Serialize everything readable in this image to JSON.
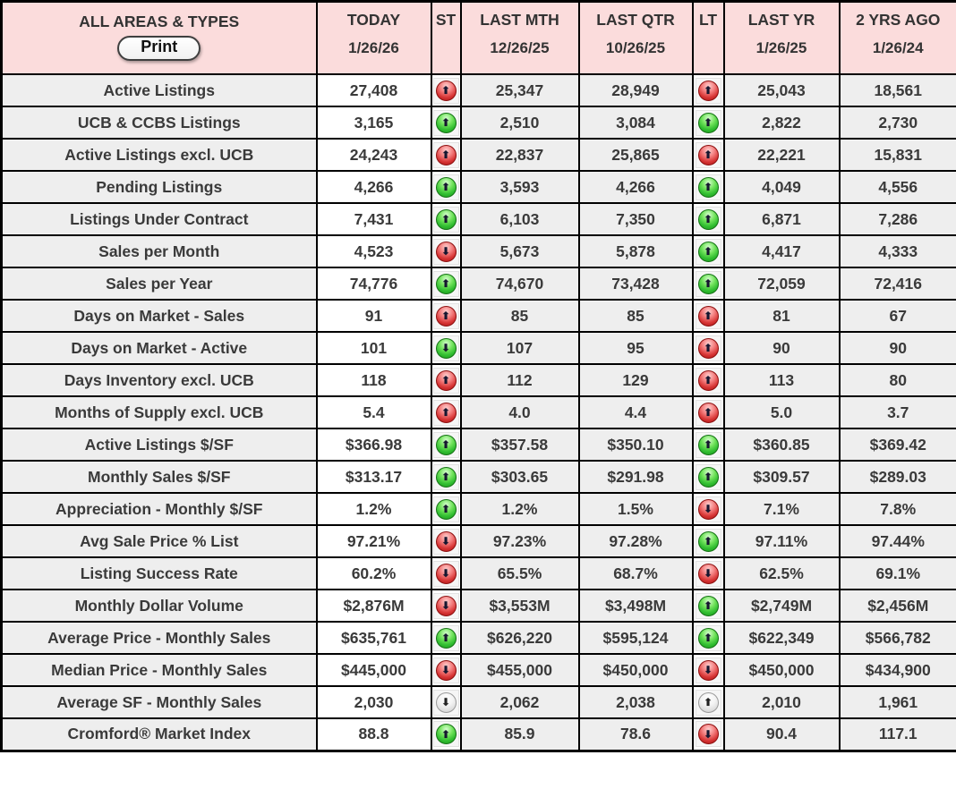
{
  "header": {
    "title": "ALL AREAS & TYPES",
    "print_label": "Print",
    "columns": [
      {
        "key": "today",
        "label": "TODAY",
        "date": "1/26/26"
      },
      {
        "key": "st",
        "label": "ST",
        "date": ""
      },
      {
        "key": "last_mth",
        "label": "LAST MTH",
        "date": "12/26/25"
      },
      {
        "key": "last_qtr",
        "label": "LAST QTR",
        "date": "10/26/25"
      },
      {
        "key": "lt",
        "label": "LT",
        "date": ""
      },
      {
        "key": "last_yr",
        "label": "LAST YR",
        "date": "1/26/25"
      },
      {
        "key": "two_yrs_ago",
        "label": "2 YRS AGO",
        "date": "1/26/24"
      }
    ]
  },
  "rows": [
    {
      "metric": "Active Listings",
      "today": "27,408",
      "st": "up-red",
      "last_mth": "25,347",
      "last_qtr": "28,949",
      "lt": "up-red",
      "last_yr": "25,043",
      "two_yrs_ago": "18,561"
    },
    {
      "metric": "UCB & CCBS Listings",
      "today": "3,165",
      "st": "up-green",
      "last_mth": "2,510",
      "last_qtr": "3,084",
      "lt": "up-green",
      "last_yr": "2,822",
      "two_yrs_ago": "2,730"
    },
    {
      "metric": "Active Listings excl. UCB",
      "today": "24,243",
      "st": "up-red",
      "last_mth": "22,837",
      "last_qtr": "25,865",
      "lt": "up-red",
      "last_yr": "22,221",
      "two_yrs_ago": "15,831"
    },
    {
      "metric": "Pending Listings",
      "today": "4,266",
      "st": "up-green",
      "last_mth": "3,593",
      "last_qtr": "4,266",
      "lt": "up-green",
      "last_yr": "4,049",
      "two_yrs_ago": "4,556"
    },
    {
      "metric": "Listings Under Contract",
      "today": "7,431",
      "st": "up-green",
      "last_mth": "6,103",
      "last_qtr": "7,350",
      "lt": "up-green",
      "last_yr": "6,871",
      "two_yrs_ago": "7,286"
    },
    {
      "metric": "Sales per Month",
      "today": "4,523",
      "st": "down-red",
      "last_mth": "5,673",
      "last_qtr": "5,878",
      "lt": "up-green",
      "last_yr": "4,417",
      "two_yrs_ago": "4,333"
    },
    {
      "metric": "Sales per Year",
      "today": "74,776",
      "st": "up-green",
      "last_mth": "74,670",
      "last_qtr": "73,428",
      "lt": "up-green",
      "last_yr": "72,059",
      "two_yrs_ago": "72,416"
    },
    {
      "metric": "Days on Market - Sales",
      "today": "91",
      "st": "up-red",
      "last_mth": "85",
      "last_qtr": "85",
      "lt": "up-red",
      "last_yr": "81",
      "two_yrs_ago": "67"
    },
    {
      "metric": "Days on Market - Active",
      "today": "101",
      "st": "down-green",
      "last_mth": "107",
      "last_qtr": "95",
      "lt": "up-red",
      "last_yr": "90",
      "two_yrs_ago": "90"
    },
    {
      "metric": "Days Inventory excl. UCB",
      "today": "118",
      "st": "up-red",
      "last_mth": "112",
      "last_qtr": "129",
      "lt": "up-red",
      "last_yr": "113",
      "two_yrs_ago": "80"
    },
    {
      "metric": "Months of Supply excl. UCB",
      "today": "5.4",
      "st": "up-red",
      "last_mth": "4.0",
      "last_qtr": "4.4",
      "lt": "up-red",
      "last_yr": "5.0",
      "two_yrs_ago": "3.7"
    },
    {
      "metric": "Active Listings $/SF",
      "today": "$366.98",
      "st": "up-green",
      "last_mth": "$357.58",
      "last_qtr": "$350.10",
      "lt": "up-green",
      "last_yr": "$360.85",
      "two_yrs_ago": "$369.42"
    },
    {
      "metric": "Monthly Sales $/SF",
      "today": "$313.17",
      "st": "up-green",
      "last_mth": "$303.65",
      "last_qtr": "$291.98",
      "lt": "up-green",
      "last_yr": "$309.57",
      "two_yrs_ago": "$289.03"
    },
    {
      "metric": "Appreciation - Monthly $/SF",
      "today": "1.2%",
      "st": "up-green",
      "last_mth": "1.2%",
      "last_qtr": "1.5%",
      "lt": "down-red",
      "last_yr": "7.1%",
      "two_yrs_ago": "7.8%"
    },
    {
      "metric": "Avg Sale Price % List",
      "today": "97.21%",
      "st": "down-red",
      "last_mth": "97.23%",
      "last_qtr": "97.28%",
      "lt": "up-green",
      "last_yr": "97.11%",
      "two_yrs_ago": "97.44%"
    },
    {
      "metric": "Listing Success Rate",
      "today": "60.2%",
      "st": "down-red",
      "last_mth": "65.5%",
      "last_qtr": "68.7%",
      "lt": "down-red",
      "last_yr": "62.5%",
      "two_yrs_ago": "69.1%"
    },
    {
      "metric": "Monthly Dollar Volume",
      "today": "$2,876M",
      "st": "down-red",
      "last_mth": "$3,553M",
      "last_qtr": "$3,498M",
      "lt": "up-green",
      "last_yr": "$2,749M",
      "two_yrs_ago": "$2,456M"
    },
    {
      "metric": "Average Price - Monthly Sales",
      "today": "$635,761",
      "st": "up-green",
      "last_mth": "$626,220",
      "last_qtr": "$595,124",
      "lt": "up-green",
      "last_yr": "$622,349",
      "two_yrs_ago": "$566,782"
    },
    {
      "metric": "Median Price - Monthly Sales",
      "today": "$445,000",
      "st": "down-red",
      "last_mth": "$455,000",
      "last_qtr": "$450,000",
      "lt": "down-red",
      "last_yr": "$450,000",
      "two_yrs_ago": "$434,900"
    },
    {
      "metric": "Average SF - Monthly Sales",
      "today": "2,030",
      "st": "down-neutral",
      "last_mth": "2,062",
      "last_qtr": "2,038",
      "lt": "up-neutral",
      "last_yr": "2,010",
      "two_yrs_ago": "1,961"
    },
    {
      "metric": "Cromford® Market Index",
      "today": "88.8",
      "st": "up-green",
      "last_mth": "85.9",
      "last_qtr": "78.6",
      "lt": "down-red",
      "last_yr": "90.4",
      "two_yrs_ago": "117.1"
    }
  ],
  "colors": {
    "header_bg": "#fbdcdc",
    "row_label_bg": "#eeeeee",
    "today_cell_bg": "#ffffff",
    "history_cell_bg": "#eeeeee",
    "border": "#000000",
    "text": "#3a3a3a",
    "arrow_up_bad": "#d63434",
    "arrow_up_good": "#30bd30",
    "arrow_neutral": "#dddddd"
  }
}
